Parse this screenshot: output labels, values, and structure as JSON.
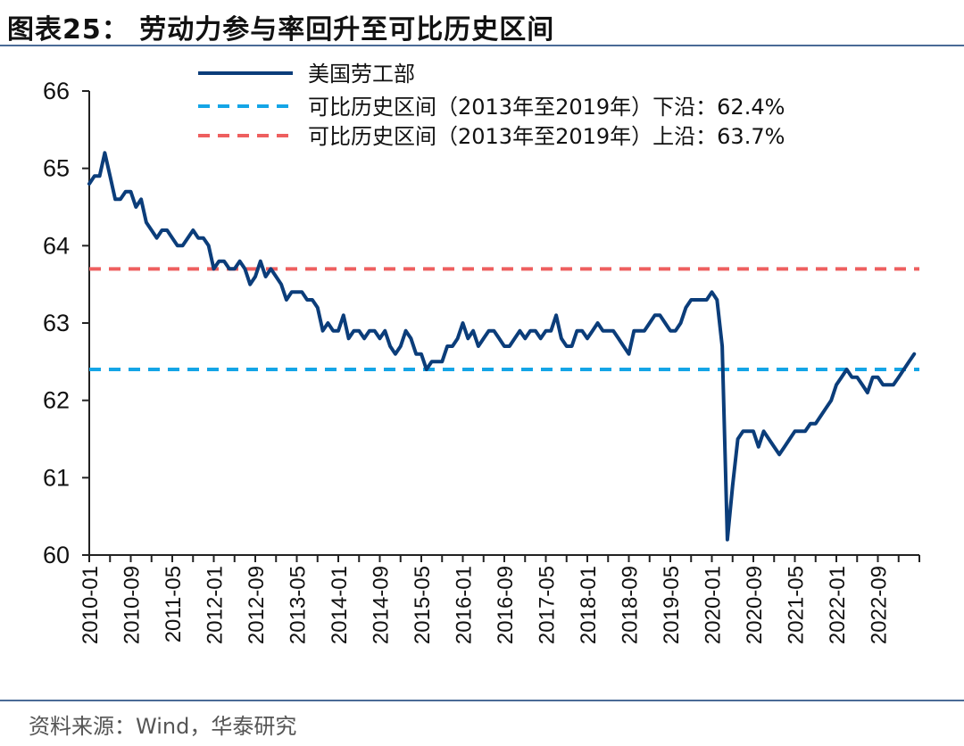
{
  "header": {
    "title": "图表25：  劳动力参与率回升至可比历史区间"
  },
  "footer": {
    "source": "资料来源：Wind，华泰研究"
  },
  "chart_data": {
    "type": "line",
    "title": "劳动力参与率回升至可比历史区间",
    "ylim": [
      60,
      66
    ],
    "yticks": [
      "60",
      "61",
      "62",
      "63",
      "64",
      "65",
      "66"
    ],
    "xtick_labels": [
      "2010-01",
      "2010-09",
      "2011-05",
      "2012-01",
      "2012-09",
      "2013-05",
      "2014-01",
      "2014-09",
      "2015-05",
      "2016-01",
      "2016-09",
      "2017-05",
      "2018-01",
      "2018-09",
      "2019-05",
      "2020-01",
      "2020-09",
      "2021-05",
      "2022-01",
      "2022-09"
    ],
    "grid": false,
    "legend_position": "top",
    "series": [
      {
        "name": "美国劳工部",
        "color": "#0b3d7a",
        "style": "solid",
        "x_start": "2010-01",
        "frequency": "monthly",
        "values": [
          64.8,
          64.9,
          64.9,
          65.2,
          64.9,
          64.6,
          64.6,
          64.7,
          64.7,
          64.5,
          64.6,
          64.3,
          64.2,
          64.1,
          64.2,
          64.2,
          64.1,
          64.0,
          64.0,
          64.1,
          64.2,
          64.1,
          64.1,
          64.0,
          63.7,
          63.8,
          63.8,
          63.7,
          63.7,
          63.8,
          63.7,
          63.5,
          63.6,
          63.8,
          63.6,
          63.7,
          63.6,
          63.5,
          63.3,
          63.4,
          63.4,
          63.4,
          63.3,
          63.3,
          63.2,
          62.9,
          63.0,
          62.9,
          62.9,
          63.1,
          62.8,
          62.9,
          62.9,
          62.8,
          62.9,
          62.9,
          62.8,
          62.9,
          62.7,
          62.6,
          62.7,
          62.9,
          62.8,
          62.6,
          62.6,
          62.4,
          62.5,
          62.5,
          62.5,
          62.7,
          62.7,
          62.8,
          63.0,
          62.8,
          62.9,
          62.7,
          62.8,
          62.9,
          62.9,
          62.8,
          62.7,
          62.7,
          62.8,
          62.9,
          62.8,
          62.9,
          62.9,
          62.8,
          62.9,
          62.9,
          63.1,
          62.8,
          62.7,
          62.7,
          62.9,
          62.9,
          62.8,
          62.9,
          63.0,
          62.9,
          62.9,
          62.9,
          62.8,
          62.7,
          62.6,
          62.9,
          62.9,
          62.9,
          63.0,
          63.1,
          63.1,
          63.0,
          62.9,
          62.9,
          63.0,
          63.2,
          63.3,
          63.3,
          63.3,
          63.3,
          63.4,
          63.3,
          62.7,
          60.2,
          60.9,
          61.5,
          61.6,
          61.6,
          61.6,
          61.4,
          61.6,
          61.5,
          61.4,
          61.3,
          61.4,
          61.5,
          61.6,
          61.6,
          61.6,
          61.7,
          61.7,
          61.8,
          61.9,
          62.0,
          62.2,
          62.3,
          62.4,
          62.3,
          62.3,
          62.2,
          62.1,
          62.3,
          62.3,
          62.2,
          62.2,
          62.2,
          62.3,
          62.4,
          62.5,
          62.6
        ]
      },
      {
        "name": "可比历史区间（2013年至2019年）下沿：62.4%",
        "color": "#14a5e6",
        "style": "dashed",
        "value": 62.4
      },
      {
        "name": "可比历史区间（2013年至2019年）上沿：63.7%",
        "color": "#ee5f5f",
        "style": "dashed",
        "value": 63.7
      }
    ]
  }
}
